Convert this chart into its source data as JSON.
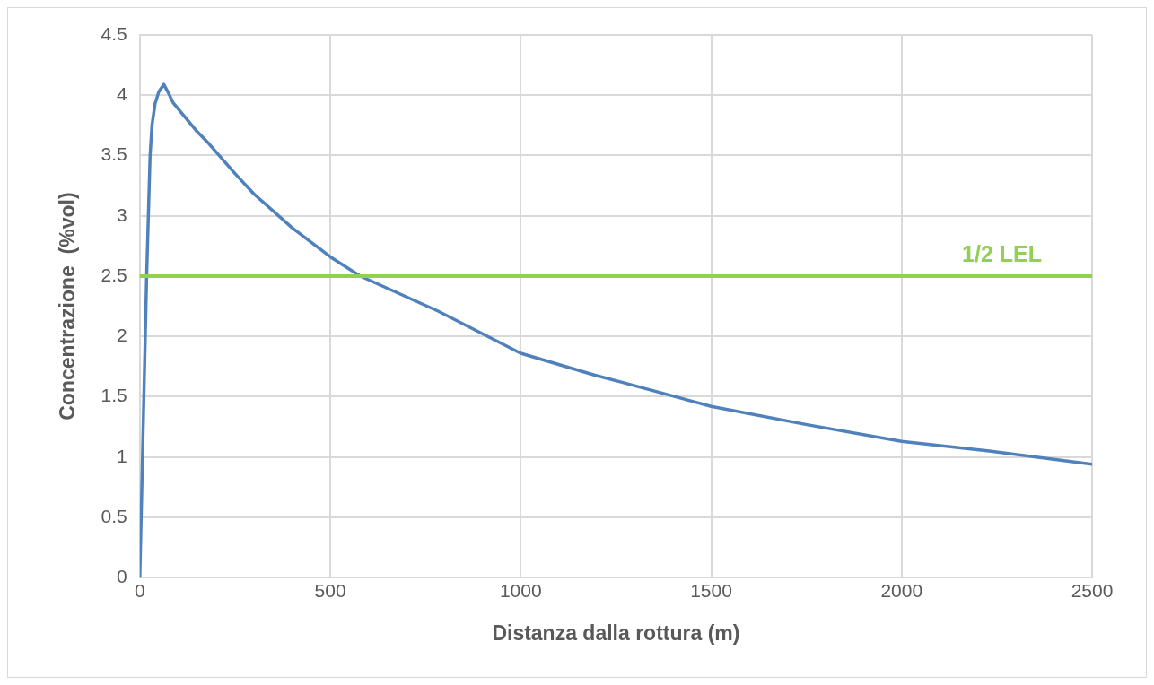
{
  "chart_data": {
    "type": "line",
    "xlabel": "Distanza dalla rottura (m)",
    "ylabel": "Concentrazione  (%vol)",
    "x": [
      0,
      5,
      10,
      18,
      27,
      32,
      40,
      50,
      63,
      75,
      87,
      150,
      181,
      250,
      300,
      400,
      500,
      579,
      783,
      1000,
      1193,
      1266,
      1500,
      1748,
      2000,
      2230,
      2500
    ],
    "series": [
      {
        "color": "#4f81bd",
        "values": [
          0,
          0.7,
          1.4,
          2.5,
          3.5,
          3.75,
          3.93,
          4.03,
          4.09,
          4.02,
          3.94,
          3.7,
          3.6,
          3.35,
          3.18,
          2.9,
          2.66,
          2.5,
          2.21,
          1.86,
          1.68,
          1.62,
          1.42,
          1.27,
          1.13,
          1.05,
          0.94
        ]
      }
    ],
    "xlim": [
      0,
      2500
    ],
    "xticks": [
      0,
      500,
      1000,
      1500,
      2000,
      2500
    ],
    "ylim": [
      0,
      4.5
    ],
    "yticks": [
      0,
      0.5,
      1,
      1.5,
      2,
      2.5,
      3,
      3.5,
      4,
      4.5
    ],
    "grid": true,
    "legend": false,
    "marker": "none",
    "line_style": "solid",
    "ref_lines": [
      {
        "axis": "y",
        "value": 2.5,
        "label": "1/2 LEL",
        "color": "#92d050"
      }
    ]
  }
}
